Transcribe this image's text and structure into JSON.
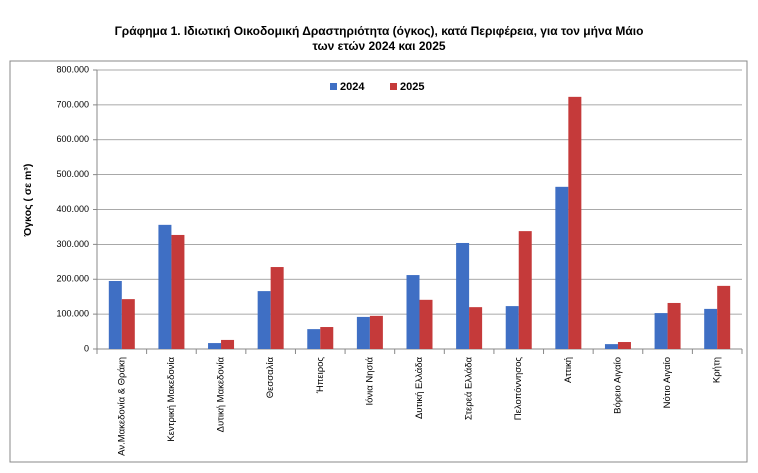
{
  "chart_data": {
    "type": "bar",
    "title": "Γράφημα 1.  Ιδιωτική Οικοδομική Δραστηριότητα (όγκος), κατά Περιφέρεια, για τον μήνα Μάιο",
    "subtitle": "των ετών 2024 και 2025",
    "y_label": "Όγκος ( σε m³)",
    "categories": [
      "Αν.Μακεδονία & Θράκη",
      "Κεντρική Μακεδονία",
      "Δυτική Μακεδονία",
      "Θεσσαλία",
      "Ήπειρος",
      "Ιόνια Νησιά",
      "Δυτική Ελλάδα",
      "Στερεά Ελλάδα",
      "Πελοπόννησος",
      "Αττική",
      "Βόρειο Αιγαίο",
      "Νότιο Αιγαίο",
      "Κρήτη"
    ],
    "series": [
      {
        "name": "2024",
        "color": "#3f6fc4",
        "values": [
          195000,
          356000,
          17000,
          166000,
          57000,
          92000,
          212000,
          304000,
          123000,
          465000,
          14000,
          103000,
          115000
        ]
      },
      {
        "name": "2025",
        "color": "#c53a3a",
        "values": [
          143000,
          327000,
          26000,
          235000,
          63000,
          95000,
          141000,
          120000,
          338000,
          723000,
          20000,
          132000,
          181000
        ]
      }
    ],
    "ylim": [
      0,
      800000
    ],
    "yticks": [
      0,
      {
        "value": 100000,
        "label": "100.000"
      },
      {
        "value": 200000,
        "label": "200.000"
      },
      {
        "value": 300000,
        "label": "300.000"
      },
      {
        "value": 400000,
        "label": "400.000"
      },
      {
        "value": 500000,
        "label": "500.000"
      },
      {
        "value": 600000,
        "label": "600.000"
      },
      {
        "value": 700000,
        "label": "700.000"
      },
      {
        "value": 800000,
        "label": "800.000"
      }
    ],
    "grid": true
  }
}
